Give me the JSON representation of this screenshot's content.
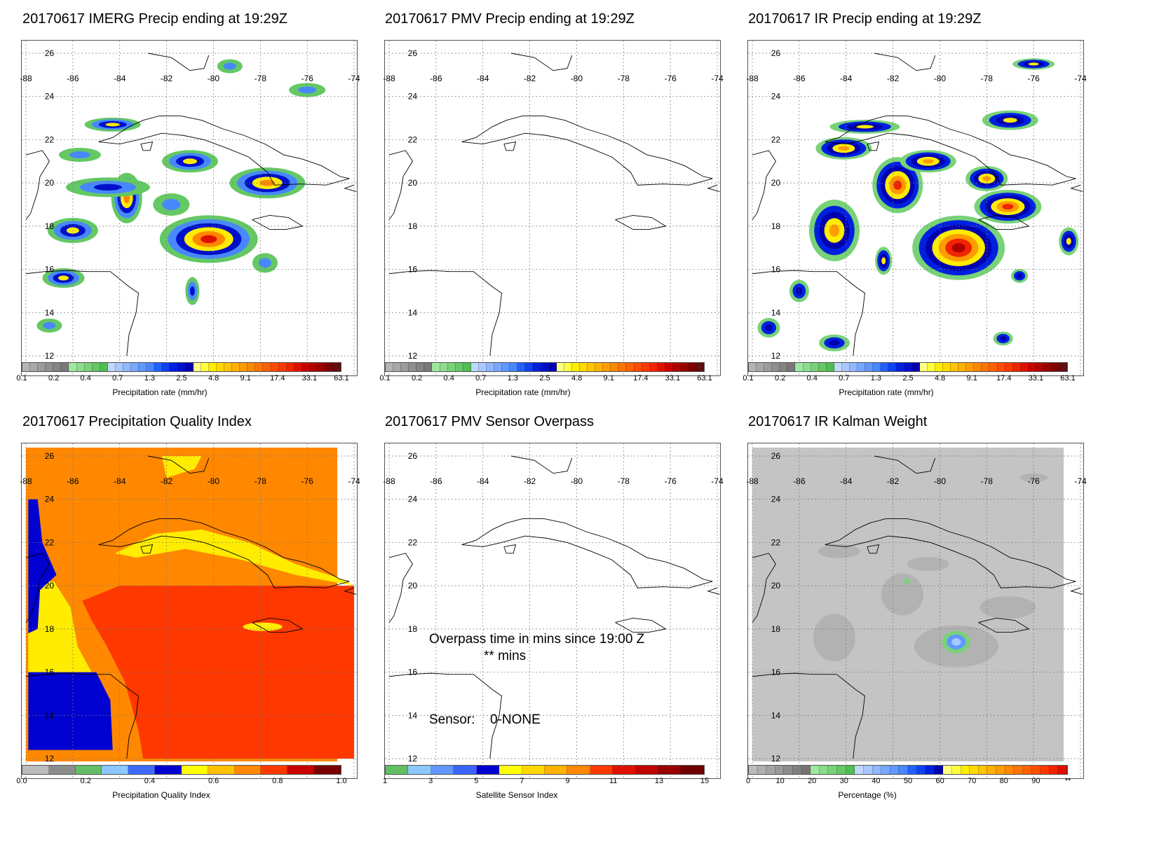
{
  "panels": [
    {
      "id": "imerg",
      "title": "20170617 IMERG Precip ending at 19:29Z",
      "fill": "precip_imerg",
      "colorbar": "precip",
      "colorbar_label": "Precipitation rate (mm/hr)"
    },
    {
      "id": "pmv",
      "title": "20170617 PMV Precip ending at 19:29Z",
      "fill": "none",
      "colorbar": "precip",
      "colorbar_label": "Precipitation rate (mm/hr)"
    },
    {
      "id": "ir",
      "title": "20170617 IR Precip ending at 19:29Z",
      "fill": "precip_ir",
      "colorbar": "precip",
      "colorbar_label": "Precipitation rate (mm/hr)"
    },
    {
      "id": "pqi",
      "title": "20170617 Precipitation Quality Index",
      "fill": "quality",
      "colorbar": "quality",
      "colorbar_label": "Precipitation Quality Index"
    },
    {
      "id": "overpass",
      "title": "20170617 PMV Sensor Overpass",
      "fill": "none",
      "colorbar": "sensor",
      "colorbar_label": "Satellite Sensor Index",
      "overpass_line1": "Overpass time in mins since 19:00 Z",
      "overpass_line2": "** mins",
      "sensor_label": "Sensor:",
      "sensor_value": "0-NONE"
    },
    {
      "id": "kalman",
      "title": "20170617 IR Kalman Weight",
      "fill": "kalman",
      "colorbar": "percent",
      "colorbar_label": "Percentage (%)"
    }
  ],
  "map": {
    "lon_labels": [
      "-88",
      "-86",
      "-84",
      "-82",
      "-80",
      "-78",
      "-76",
      "-74"
    ],
    "lat_labels": [
      "26",
      "24",
      "22",
      "20",
      "18",
      "16",
      "14",
      "12"
    ],
    "lon_range": [
      -88,
      -74
    ],
    "lat_range": [
      12,
      26
    ]
  },
  "colorbars": {
    "precip": {
      "ticks": [
        "0.1",
        "0.2",
        "0.4",
        "0.7",
        "1.3",
        "2.5",
        "4.8",
        "9.1",
        "17.4",
        "33.1",
        "63.1"
      ],
      "colors": [
        "#b4b4b4",
        "#a8a8a8",
        "#9c9c9c",
        "#909090",
        "#848484",
        "#787878",
        "#a0e6a0",
        "#8cdc8c",
        "#78d278",
        "#64c864",
        "#50be50",
        "#c0d8ff",
        "#a8c8ff",
        "#90b8ff",
        "#78a8ff",
        "#6098ff",
        "#4888ff",
        "#2060ff",
        "#1040f0",
        "#0020e0",
        "#0010c8",
        "#0000b0",
        "#ffff80",
        "#ffff40",
        "#ffec00",
        "#ffd800",
        "#ffc400",
        "#ffb000",
        "#ff9c00",
        "#ff8800",
        "#ff7400",
        "#ff6000",
        "#ff4c00",
        "#ff3800",
        "#f02400",
        "#e01000",
        "#c80000",
        "#b00000",
        "#980000",
        "#800000",
        "#601010"
      ]
    },
    "quality": {
      "ticks": [
        "0.0",
        "0.2",
        "0.4",
        "0.6",
        "0.8",
        "1.0"
      ],
      "colors": [
        "#bcbcbc",
        "#8c8c8c",
        "#64be64",
        "#8cc8ff",
        "#3c6cff",
        "#0000d0",
        "#ffff00",
        "#ffc000",
        "#ff8800",
        "#ff3800",
        "#c80000",
        "#780000"
      ]
    },
    "sensor": {
      "ticks": [
        "1",
        "3",
        "5",
        "7",
        "9",
        "11",
        "13",
        "15"
      ],
      "colors": [
        "#64be64",
        "#8cc8ff",
        "#6496ff",
        "#3c64ff",
        "#0000d0",
        "#ffff00",
        "#ffd800",
        "#ffb000",
        "#ff8800",
        "#ff3800",
        "#e01000",
        "#c00000",
        "#980000",
        "#700000"
      ]
    },
    "percent": {
      "ticks": [
        "0",
        "10",
        "20",
        "30",
        "40",
        "50",
        "60",
        "70",
        "80",
        "90",
        "**"
      ],
      "colors": [
        "#bcbcbc",
        "#b0b0b0",
        "#a4a4a4",
        "#989898",
        "#8c8c8c",
        "#808080",
        "#747474",
        "#a0e6a0",
        "#8cdc8c",
        "#78d278",
        "#64c864",
        "#50be50",
        "#c0d8ff",
        "#a8c8ff",
        "#90b8ff",
        "#78a8ff",
        "#6098ff",
        "#4888ff",
        "#2060ff",
        "#1040f0",
        "#0020e0",
        "#0000b0",
        "#ffff80",
        "#ffff40",
        "#ffec00",
        "#ffd800",
        "#ffc400",
        "#ffb000",
        "#ff9c00",
        "#ff8800",
        "#ff7400",
        "#ff6000",
        "#ff4c00",
        "#ff3800",
        "#f02400",
        "#e01000"
      ]
    }
  }
}
